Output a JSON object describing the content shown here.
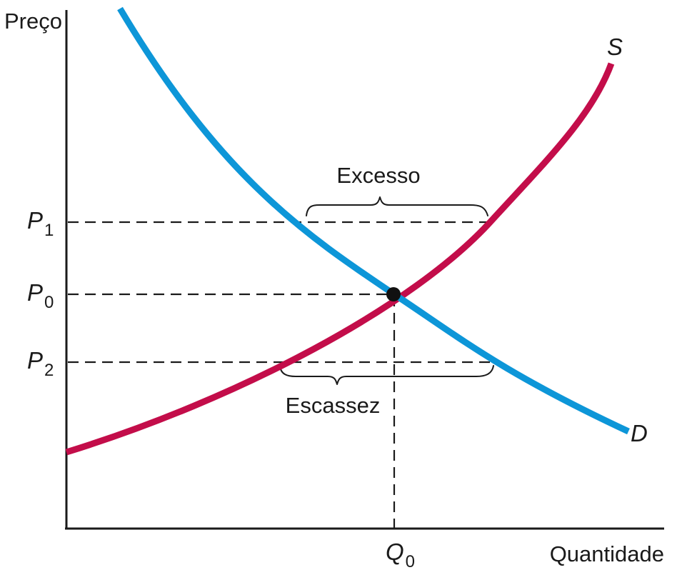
{
  "axes": {
    "y_label": "Preço",
    "x_label": "Quantidade"
  },
  "price_levels": [
    {
      "letter": "P",
      "sub": "1"
    },
    {
      "letter": "P",
      "sub": "0"
    },
    {
      "letter": "P",
      "sub": "2"
    }
  ],
  "quantity_mark": {
    "letter": "Q",
    "sub": "0"
  },
  "curves": {
    "supply": {
      "label": "S",
      "color": "#c30d4a"
    },
    "demand": {
      "label": "D",
      "color": "#0d96d8"
    }
  },
  "annotations": {
    "excess": "Excesso",
    "shortage": "Escassez"
  },
  "equilibrium_color": "#111111"
}
